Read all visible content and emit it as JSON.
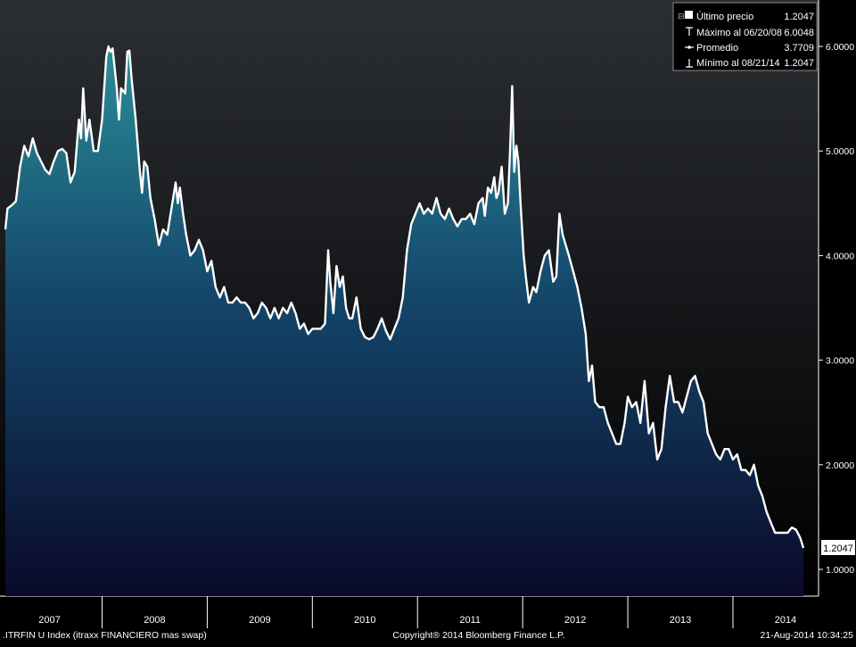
{
  "footer": {
    "left": ".ITRFIN U Index (itraxx FINANCIERO mas swap)",
    "center": "Copyright® 2014 Bloomberg Finance L.P.",
    "right": "21-Aug-2014 10:34:25"
  },
  "legend": {
    "placement": "top-right",
    "items": [
      {
        "name": "last-price",
        "icon": "filled-square-icon",
        "label": "Último precio",
        "value": "1.2047"
      },
      {
        "name": "max",
        "icon": "max-marker-icon",
        "label": "Máximo al 06/20/08",
        "value": "6.0048"
      },
      {
        "name": "average",
        "icon": "average-marker-icon",
        "label": "Promedio",
        "value": "3.7709"
      },
      {
        "name": "min",
        "icon": "min-marker-icon",
        "label": "Mínimo al 08/21/14",
        "value": "1.2047"
      }
    ]
  },
  "colors": {
    "line": "#ffffff",
    "area_top": "#2a8b98",
    "area_bottom": "#0a0a2a",
    "background_top": "#2b2e33",
    "background_bottom": "#000000",
    "axis_text": "#ffffff"
  },
  "chart_data": {
    "type": "area",
    "x_unit": "year (decimal)",
    "xlim": [
      2006.58,
      2014.97
    ],
    "ylim": [
      0.8,
      6.3
    ],
    "grid": false,
    "y_ticks": [
      1.0,
      2.0,
      3.0,
      4.0,
      5.0,
      6.0
    ],
    "y_tick_labels": [
      "1.0000",
      "2.0000",
      "3.0000",
      "4.0000",
      "5.0000",
      "6.0000"
    ],
    "x_tick_labels": [
      "2007",
      "2008",
      "2009",
      "2010",
      "2011",
      "2012",
      "2013",
      "2014"
    ],
    "x_tick_centers": [
      2007.0,
      2008.0,
      2009.0,
      2010.0,
      2011.0,
      2012.0,
      2013.0,
      2014.0
    ],
    "x_year_dividers": [
      2007.5,
      2008.5,
      2009.5,
      2010.5,
      2011.5,
      2012.5,
      2013.5
    ],
    "last_value_label": "1.2047",
    "series": [
      {
        "points": [
          [
            2006.58,
            4.25
          ],
          [
            2006.6,
            4.45
          ],
          [
            2006.64,
            4.48
          ],
          [
            2006.68,
            4.52
          ],
          [
            2006.72,
            4.85
          ],
          [
            2006.76,
            5.05
          ],
          [
            2006.8,
            4.95
          ],
          [
            2006.84,
            5.12
          ],
          [
            2006.88,
            4.98
          ],
          [
            2006.92,
            4.9
          ],
          [
            2006.96,
            4.82
          ],
          [
            2007.0,
            4.78
          ],
          [
            2007.04,
            4.9
          ],
          [
            2007.08,
            5.0
          ],
          [
            2007.12,
            5.02
          ],
          [
            2007.16,
            4.98
          ],
          [
            2007.2,
            4.7
          ],
          [
            2007.24,
            4.8
          ],
          [
            2007.28,
            5.3
          ],
          [
            2007.3,
            5.12
          ],
          [
            2007.32,
            5.6
          ],
          [
            2007.35,
            5.1
          ],
          [
            2007.38,
            5.3
          ],
          [
            2007.42,
            5.0
          ],
          [
            2007.46,
            5.0
          ],
          [
            2007.5,
            5.3
          ],
          [
            2007.54,
            5.9
          ],
          [
            2007.56,
            6.0
          ],
          [
            2007.58,
            5.95
          ],
          [
            2007.6,
            5.98
          ],
          [
            2007.64,
            5.6
          ],
          [
            2007.66,
            5.3
          ],
          [
            2007.68,
            5.6
          ],
          [
            2007.72,
            5.55
          ],
          [
            2007.74,
            5.95
          ],
          [
            2007.76,
            5.96
          ],
          [
            2007.78,
            5.7
          ],
          [
            2007.82,
            5.3
          ],
          [
            2007.86,
            4.8
          ],
          [
            2007.88,
            4.6
          ],
          [
            2007.9,
            4.9
          ],
          [
            2007.93,
            4.85
          ],
          [
            2007.96,
            4.55
          ],
          [
            2008.0,
            4.35
          ],
          [
            2008.04,
            4.1
          ],
          [
            2008.08,
            4.25
          ],
          [
            2008.12,
            4.2
          ],
          [
            2008.16,
            4.45
          ],
          [
            2008.2,
            4.7
          ],
          [
            2008.22,
            4.5
          ],
          [
            2008.24,
            4.65
          ],
          [
            2008.27,
            4.4
          ],
          [
            2008.3,
            4.2
          ],
          [
            2008.34,
            4.0
          ],
          [
            2008.38,
            4.05
          ],
          [
            2008.42,
            4.15
          ],
          [
            2008.46,
            4.05
          ],
          [
            2008.5,
            3.85
          ],
          [
            2008.54,
            3.95
          ],
          [
            2008.58,
            3.7
          ],
          [
            2008.62,
            3.6
          ],
          [
            2008.66,
            3.7
          ],
          [
            2008.7,
            3.55
          ],
          [
            2008.74,
            3.55
          ],
          [
            2008.78,
            3.6
          ],
          [
            2008.82,
            3.55
          ],
          [
            2008.86,
            3.55
          ],
          [
            2008.9,
            3.5
          ],
          [
            2008.94,
            3.4
          ],
          [
            2008.98,
            3.45
          ],
          [
            2009.02,
            3.55
          ],
          [
            2009.06,
            3.5
          ],
          [
            2009.1,
            3.4
          ],
          [
            2009.14,
            3.5
          ],
          [
            2009.18,
            3.4
          ],
          [
            2009.22,
            3.5
          ],
          [
            2009.26,
            3.45
          ],
          [
            2009.3,
            3.55
          ],
          [
            2009.34,
            3.45
          ],
          [
            2009.38,
            3.3
          ],
          [
            2009.42,
            3.35
          ],
          [
            2009.46,
            3.25
          ],
          [
            2009.5,
            3.3
          ],
          [
            2009.54,
            3.3
          ],
          [
            2009.58,
            3.3
          ],
          [
            2009.62,
            3.35
          ],
          [
            2009.65,
            4.05
          ],
          [
            2009.67,
            3.75
          ],
          [
            2009.7,
            3.45
          ],
          [
            2009.73,
            3.9
          ],
          [
            2009.76,
            3.7
          ],
          [
            2009.79,
            3.8
          ],
          [
            2009.82,
            3.5
          ],
          [
            2009.85,
            3.4
          ],
          [
            2009.88,
            3.4
          ],
          [
            2009.92,
            3.6
          ],
          [
            2009.96,
            3.3
          ],
          [
            2010.0,
            3.22
          ],
          [
            2010.04,
            3.2
          ],
          [
            2010.08,
            3.22
          ],
          [
            2010.12,
            3.3
          ],
          [
            2010.16,
            3.4
          ],
          [
            2010.2,
            3.28
          ],
          [
            2010.24,
            3.2
          ],
          [
            2010.28,
            3.3
          ],
          [
            2010.32,
            3.4
          ],
          [
            2010.36,
            3.6
          ],
          [
            2010.4,
            4.05
          ],
          [
            2010.44,
            4.3
          ],
          [
            2010.48,
            4.4
          ],
          [
            2010.52,
            4.5
          ],
          [
            2010.56,
            4.4
          ],
          [
            2010.6,
            4.45
          ],
          [
            2010.64,
            4.4
          ],
          [
            2010.68,
            4.55
          ],
          [
            2010.72,
            4.4
          ],
          [
            2010.76,
            4.35
          ],
          [
            2010.8,
            4.45
          ],
          [
            2010.84,
            4.35
          ],
          [
            2010.88,
            4.28
          ],
          [
            2010.92,
            4.35
          ],
          [
            2010.96,
            4.35
          ],
          [
            2011.0,
            4.4
          ],
          [
            2011.04,
            4.3
          ],
          [
            2011.08,
            4.5
          ],
          [
            2011.12,
            4.55
          ],
          [
            2011.14,
            4.38
          ],
          [
            2011.17,
            4.65
          ],
          [
            2011.2,
            4.6
          ],
          [
            2011.23,
            4.75
          ],
          [
            2011.25,
            4.55
          ],
          [
            2011.27,
            4.6
          ],
          [
            2011.3,
            4.85
          ],
          [
            2011.33,
            4.4
          ],
          [
            2011.36,
            4.5
          ],
          [
            2011.38,
            5.0
          ],
          [
            2011.4,
            5.62
          ],
          [
            2011.42,
            4.8
          ],
          [
            2011.44,
            5.05
          ],
          [
            2011.46,
            4.9
          ],
          [
            2011.48,
            4.5
          ],
          [
            2011.51,
            4.0
          ],
          [
            2011.53,
            3.8
          ],
          [
            2011.56,
            3.55
          ],
          [
            2011.6,
            3.7
          ],
          [
            2011.63,
            3.65
          ],
          [
            2011.67,
            3.85
          ],
          [
            2011.71,
            4.0
          ],
          [
            2011.75,
            4.05
          ],
          [
            2011.79,
            3.75
          ],
          [
            2011.82,
            3.8
          ],
          [
            2011.85,
            4.4
          ],
          [
            2011.88,
            4.2
          ],
          [
            2011.91,
            4.1
          ],
          [
            2011.94,
            4.0
          ],
          [
            2011.98,
            3.85
          ],
          [
            2012.02,
            3.7
          ],
          [
            2012.06,
            3.5
          ],
          [
            2012.1,
            3.25
          ],
          [
            2012.13,
            2.8
          ],
          [
            2012.16,
            2.95
          ],
          [
            2012.19,
            2.6
          ],
          [
            2012.23,
            2.55
          ],
          [
            2012.27,
            2.55
          ],
          [
            2012.31,
            2.4
          ],
          [
            2012.35,
            2.3
          ],
          [
            2012.39,
            2.2
          ],
          [
            2012.43,
            2.2
          ],
          [
            2012.47,
            2.4
          ],
          [
            2012.5,
            2.65
          ],
          [
            2012.54,
            2.55
          ],
          [
            2012.58,
            2.6
          ],
          [
            2012.62,
            2.4
          ],
          [
            2012.66,
            2.8
          ],
          [
            2012.7,
            2.3
          ],
          [
            2012.74,
            2.4
          ],
          [
            2012.78,
            2.05
          ],
          [
            2012.82,
            2.15
          ],
          [
            2012.86,
            2.55
          ],
          [
            2012.9,
            2.85
          ],
          [
            2012.94,
            2.6
          ],
          [
            2012.98,
            2.6
          ],
          [
            2013.02,
            2.5
          ],
          [
            2013.06,
            2.65
          ],
          [
            2013.1,
            2.8
          ],
          [
            2013.14,
            2.85
          ],
          [
            2013.18,
            2.7
          ],
          [
            2013.22,
            2.6
          ],
          [
            2013.26,
            2.3
          ],
          [
            2013.3,
            2.2
          ],
          [
            2013.34,
            2.1
          ],
          [
            2013.38,
            2.05
          ],
          [
            2013.42,
            2.15
          ],
          [
            2013.46,
            2.15
          ],
          [
            2013.5,
            2.05
          ],
          [
            2013.54,
            2.1
          ],
          [
            2013.58,
            1.95
          ],
          [
            2013.62,
            1.95
          ],
          [
            2013.66,
            1.9
          ],
          [
            2013.7,
            2.0
          ],
          [
            2013.74,
            1.8
          ],
          [
            2013.78,
            1.7
          ],
          [
            2013.82,
            1.55
          ],
          [
            2013.86,
            1.45
          ],
          [
            2013.9,
            1.35
          ],
          [
            2013.94,
            1.35
          ],
          [
            2013.98,
            1.35
          ],
          [
            2014.02,
            1.35
          ],
          [
            2014.06,
            1.4
          ],
          [
            2014.1,
            1.38
          ],
          [
            2014.14,
            1.3
          ],
          [
            2014.17,
            1.2047
          ]
        ]
      }
    ]
  }
}
